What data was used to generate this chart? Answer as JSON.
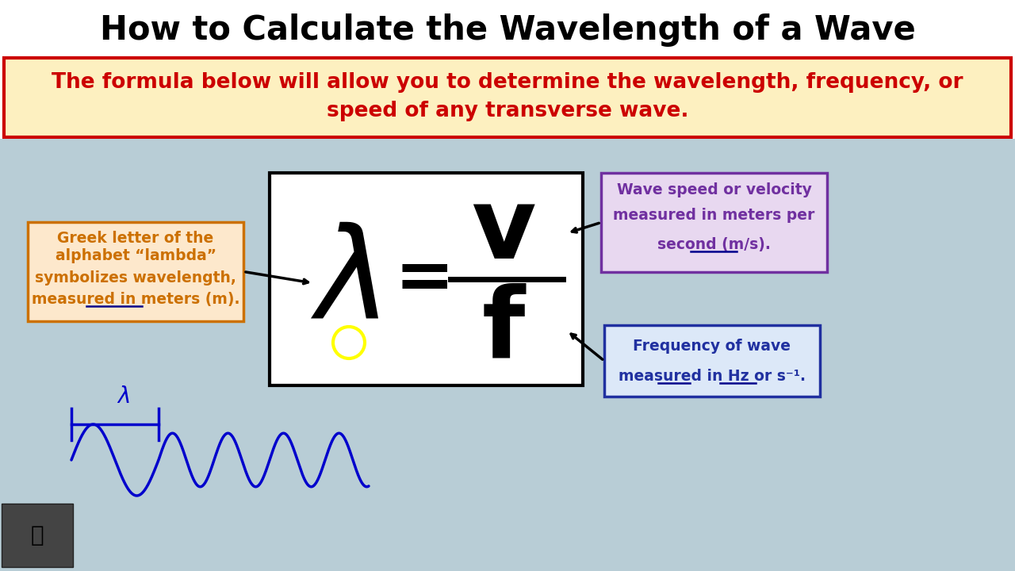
{
  "title": "How to Calculate the Wavelength of a Wave",
  "subtitle_line1": "The formula below will allow you to determine the wavelength, frequency, or",
  "subtitle_line2": "speed of any transverse wave.",
  "bg_color": "#b8cdd6",
  "title_bg": "#ffffff",
  "subtitle_bg": "#fdf0c0",
  "subtitle_border": "#cc0000",
  "subtitle_text_color": "#cc0000",
  "formula_box_bg": "#ffffff",
  "formula_box_border": "#000000",
  "lambda_box_bg": "#fde8cc",
  "lambda_box_border": "#cc7000",
  "lambda_text_color": "#cc7000",
  "lambda_label_line1": "Greek letter of the",
  "lambda_label_line2": "alphabet “lambda”",
  "lambda_label_line3": "symbolizes wavelength,",
  "lambda_label_line4": "measured in meters (m).",
  "v_box_bg": "#e8d8f0",
  "v_box_border": "#7030a0",
  "v_text_color": "#7030a0",
  "v_label_line1": "Wave speed or velocity",
  "v_label_line2": "measured in meters per",
  "v_label_line3": "second (m/s).",
  "f_box_bg": "#dce8f8",
  "f_box_border": "#2030a0",
  "f_text_color": "#2030a0",
  "f_label_line1": "Frequency of wave",
  "f_label_line2": "measured in Hz or s⁻¹.",
  "wave_color": "#0000cc",
  "circle_color": "#ffff00"
}
